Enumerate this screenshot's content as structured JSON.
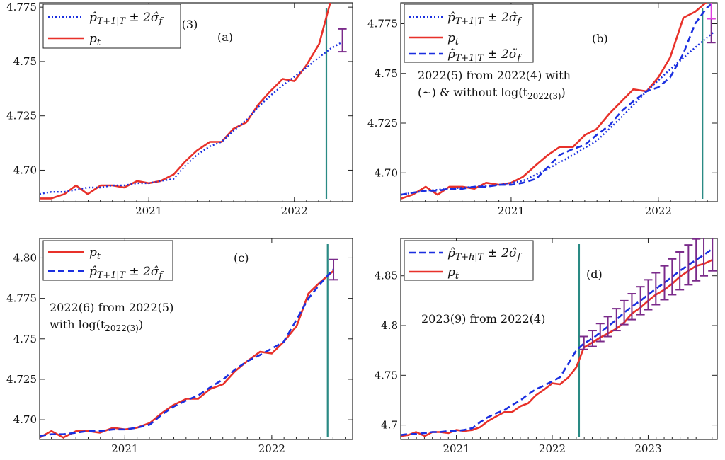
{
  "colors": {
    "actual": "#e8312a",
    "forecast": "#1a2fe0",
    "vline": "#2a8a84",
    "errorbar": "#7a2a8a",
    "errorbar2": "#e040e0",
    "frame": "#222222"
  },
  "chart_data": [
    {
      "id": "a",
      "type": "line",
      "panel_label": "(a)",
      "annotation_lines": [
        "2022(4) from 2022(3)"
      ],
      "xlim": [
        2020.25,
        2022.4
      ],
      "ylim": [
        4.6855,
        4.777
      ],
      "xticks": [
        2021,
        2022
      ],
      "xtick_labels": [
        "2021",
        "2022"
      ],
      "yticks": [
        4.7,
        4.725,
        4.75,
        4.775
      ],
      "ytick_labels": [
        "4.70",
        "4.725",
        "4.75",
        "4.775"
      ],
      "legend": [
        "p̂_{T+1|T} ± 2σ̂_f",
        "p_t"
      ],
      "legend_position": "top-left",
      "vline_x": 2022.22,
      "series": [
        {
          "name": "p_t",
          "style": "solid",
          "x": [
            2020.25,
            2020.33,
            2020.42,
            2020.5,
            2020.58,
            2020.67,
            2020.75,
            2020.83,
            2020.92,
            2021.0,
            2021.08,
            2021.17,
            2021.25,
            2021.33,
            2021.42,
            2021.5,
            2021.58,
            2021.67,
            2021.75,
            2021.83,
            2021.92,
            2022.0,
            2022.08,
            2022.17,
            2022.25,
            2022.33
          ],
          "values": [
            4.687,
            4.687,
            4.689,
            4.693,
            4.689,
            4.693,
            4.693,
            4.692,
            4.695,
            4.694,
            4.695,
            4.698,
            4.704,
            4.709,
            4.713,
            4.713,
            4.719,
            4.722,
            4.73,
            4.736,
            4.742,
            4.741,
            4.748,
            4.758,
            4.778,
            4.796
          ]
        },
        {
          "name": "p̂_{T+1|T}",
          "style": "dotted",
          "x": [
            2020.25,
            2020.33,
            2020.42,
            2020.5,
            2020.58,
            2020.67,
            2020.75,
            2020.83,
            2020.92,
            2021.0,
            2021.08,
            2021.17,
            2021.25,
            2021.33,
            2021.42,
            2021.5,
            2021.58,
            2021.67,
            2021.75,
            2021.83,
            2021.92,
            2022.0,
            2022.08,
            2022.17,
            2022.25,
            2022.33
          ],
          "values": [
            4.689,
            4.69,
            4.69,
            4.691,
            4.692,
            4.692,
            4.693,
            4.693,
            4.694,
            4.694,
            4.695,
            4.696,
            4.702,
            4.707,
            4.711,
            4.713,
            4.718,
            4.723,
            4.729,
            4.734,
            4.739,
            4.743,
            4.747,
            4.752,
            4.756,
            4.759
          ]
        }
      ],
      "error_bars": [
        {
          "x": 2022.33,
          "low": 4.7545,
          "high": 4.765
        }
      ]
    },
    {
      "id": "b",
      "type": "line",
      "panel_label": "(b)",
      "annotation_lines": [
        "2022(5) from 2022(4) with",
        "(~) & without log(t_{2022(3)})"
      ],
      "xlim": [
        2020.25,
        2022.4
      ],
      "ylim": [
        4.6855,
        4.7855
      ],
      "xticks": [
        2021,
        2022
      ],
      "xtick_labels": [
        "2021",
        "2022"
      ],
      "yticks": [
        4.7,
        4.725,
        4.75,
        4.775
      ],
      "ytick_labels": [
        "4.70",
        "4.725",
        "4.75",
        "4.775"
      ],
      "legend": [
        "p̂_{T+1|T} ± 2σ̂_f",
        "p_t",
        "p̃_{T+1|T} ± 2σ̃_f"
      ],
      "legend_position": "top-left",
      "vline_x": 2022.3,
      "series": [
        {
          "name": "p_t",
          "style": "solid",
          "x": [
            2020.25,
            2020.33,
            2020.42,
            2020.5,
            2020.58,
            2020.67,
            2020.75,
            2020.83,
            2020.92,
            2021.0,
            2021.08,
            2021.17,
            2021.25,
            2021.33,
            2021.42,
            2021.5,
            2021.58,
            2021.67,
            2021.75,
            2021.83,
            2021.92,
            2022.0,
            2022.08,
            2022.17,
            2022.25,
            2022.33
          ],
          "values": [
            4.687,
            4.689,
            4.693,
            4.689,
            4.693,
            4.693,
            4.692,
            4.695,
            4.694,
            4.695,
            4.698,
            4.704,
            4.709,
            4.713,
            4.713,
            4.719,
            4.722,
            4.73,
            4.736,
            4.742,
            4.741,
            4.748,
            4.758,
            4.778,
            4.781,
            4.786
          ]
        },
        {
          "name": "p̂_{T+1|T}",
          "style": "dotted",
          "x": [
            2020.25,
            2020.42,
            2020.58,
            2020.75,
            2020.92,
            2021.08,
            2021.25,
            2021.42,
            2021.58,
            2021.75,
            2021.92,
            2022.08,
            2022.25,
            2022.38
          ],
          "values": [
            4.689,
            4.691,
            4.692,
            4.693,
            4.694,
            4.696,
            4.702,
            4.709,
            4.716,
            4.728,
            4.741,
            4.752,
            4.763,
            4.771
          ]
        },
        {
          "name": "p̃_{T+1|T}",
          "style": "dashed",
          "x": [
            2020.25,
            2020.33,
            2020.42,
            2020.5,
            2020.58,
            2020.67,
            2020.75,
            2020.83,
            2020.92,
            2021.0,
            2021.08,
            2021.17,
            2021.25,
            2021.33,
            2021.42,
            2021.5,
            2021.58,
            2021.67,
            2021.75,
            2021.83,
            2021.92,
            2022.0,
            2022.08,
            2022.17,
            2022.25,
            2022.33,
            2022.38
          ],
          "values": [
            4.689,
            4.69,
            4.691,
            4.691,
            4.692,
            4.692,
            4.693,
            4.693,
            4.694,
            4.694,
            4.695,
            4.697,
            4.703,
            4.709,
            4.712,
            4.714,
            4.719,
            4.724,
            4.731,
            4.736,
            4.741,
            4.743,
            4.748,
            4.76,
            4.775,
            4.783,
            4.786
          ]
        }
      ],
      "error_bars": [
        {
          "x": 2022.36,
          "low": 4.7655,
          "high": 4.7775,
          "color": "errorbar"
        },
        {
          "x": 2022.36,
          "low": 4.7775,
          "high": 4.79,
          "color": "errorbar2"
        }
      ]
    },
    {
      "id": "c",
      "type": "line",
      "panel_label": "(c)",
      "annotation_lines": [
        "2022(6) from 2022(5)",
        "with log(t_{2022(3)})"
      ],
      "xlim": [
        2020.42,
        2022.55
      ],
      "ylim": [
        4.6878,
        4.812
      ],
      "xticks": [
        2021,
        2022
      ],
      "xtick_labels": [
        "2021",
        "2022"
      ],
      "yticks": [
        4.7,
        4.725,
        4.75,
        4.775,
        4.8
      ],
      "ytick_labels": [
        "4.70",
        "4.725",
        "4.75",
        "4.775",
        "4.80"
      ],
      "legend": [
        "p_t",
        "p̂_{T+1|T} ± 2σ̂_f"
      ],
      "legend_position": "top-left",
      "vline_x": 2022.38,
      "series": [
        {
          "name": "p_t",
          "style": "solid",
          "x": [
            2020.42,
            2020.5,
            2020.58,
            2020.67,
            2020.75,
            2020.83,
            2020.92,
            2021.0,
            2021.08,
            2021.17,
            2021.25,
            2021.33,
            2021.42,
            2021.5,
            2021.58,
            2021.67,
            2021.75,
            2021.83,
            2021.92,
            2022.0,
            2022.08,
            2022.17,
            2022.25,
            2022.33,
            2022.42
          ],
          "values": [
            4.689,
            4.693,
            4.689,
            4.693,
            4.693,
            4.692,
            4.695,
            4.694,
            4.695,
            4.698,
            4.704,
            4.709,
            4.713,
            4.713,
            4.719,
            4.722,
            4.73,
            4.736,
            4.742,
            4.741,
            4.748,
            4.758,
            4.778,
            4.785,
            4.792
          ]
        },
        {
          "name": "p̂_{T+1|T}",
          "style": "dashed",
          "x": [
            2020.42,
            2020.5,
            2020.58,
            2020.67,
            2020.75,
            2020.83,
            2020.92,
            2021.0,
            2021.08,
            2021.17,
            2021.25,
            2021.33,
            2021.42,
            2021.5,
            2021.58,
            2021.67,
            2021.75,
            2021.83,
            2021.92,
            2022.0,
            2022.08,
            2022.17,
            2022.25,
            2022.33,
            2022.42
          ],
          "values": [
            4.69,
            4.691,
            4.691,
            4.692,
            4.693,
            4.693,
            4.694,
            4.694,
            4.695,
            4.697,
            4.703,
            4.708,
            4.712,
            4.715,
            4.72,
            4.725,
            4.731,
            4.736,
            4.74,
            4.744,
            4.748,
            4.762,
            4.775,
            4.784,
            4.793
          ]
        }
      ],
      "error_bars": [
        {
          "x": 2022.42,
          "low": 4.7865,
          "high": 4.799
        }
      ]
    },
    {
      "id": "d",
      "type": "line",
      "panel_label": "(d)",
      "annotation_lines": [
        "2023(9) from 2022(4)"
      ],
      "xlim": [
        2020.42,
        2023.72
      ],
      "ylim": [
        4.6855,
        4.8875
      ],
      "xticks": [
        2021,
        2022,
        2023
      ],
      "xtick_labels": [
        "2021",
        "2022",
        "2023"
      ],
      "yticks": [
        4.7,
        4.75,
        4.8,
        4.85
      ],
      "ytick_labels": [
        "4.7",
        "4.75",
        "4.8",
        "4.85"
      ],
      "legend": [
        "p̂_{T+h|T} ± 2σ̂_f",
        "p_t"
      ],
      "legend_position": "top-left",
      "vline_x": 2022.28,
      "series": [
        {
          "name": "p_t",
          "style": "solid",
          "x": [
            2020.42,
            2020.5,
            2020.58,
            2020.67,
            2020.75,
            2020.83,
            2020.92,
            2021.0,
            2021.08,
            2021.17,
            2021.25,
            2021.33,
            2021.42,
            2021.5,
            2021.58,
            2021.67,
            2021.75,
            2021.83,
            2021.92,
            2022.0,
            2022.08,
            2022.17,
            2022.25,
            2022.33,
            2022.42,
            2022.5,
            2022.58,
            2022.67,
            2022.75,
            2022.83,
            2022.92,
            2023.0,
            2023.08,
            2023.17,
            2023.25,
            2023.33,
            2023.42,
            2023.5,
            2023.58,
            2023.67
          ],
          "values": [
            4.689,
            4.69,
            4.693,
            4.689,
            4.693,
            4.693,
            4.692,
            4.695,
            4.694,
            4.695,
            4.698,
            4.704,
            4.709,
            4.713,
            4.713,
            4.719,
            4.722,
            4.73,
            4.736,
            4.742,
            4.741,
            4.748,
            4.758,
            4.778,
            4.783,
            4.788,
            4.792,
            4.797,
            4.803,
            4.812,
            4.818,
            4.825,
            4.831,
            4.836,
            4.842,
            4.849,
            4.855,
            4.86,
            4.862,
            4.866
          ]
        },
        {
          "name": "p̂_{T+h|T}",
          "style": "dashed",
          "x": [
            2020.42,
            2020.5,
            2020.58,
            2020.67,
            2020.75,
            2020.83,
            2020.92,
            2021.0,
            2021.08,
            2021.17,
            2021.25,
            2021.33,
            2021.42,
            2021.5,
            2021.58,
            2021.67,
            2021.75,
            2021.83,
            2021.92,
            2022.0,
            2022.08,
            2022.17,
            2022.25,
            2022.33,
            2022.42,
            2022.5,
            2022.58,
            2022.67,
            2022.75,
            2022.83,
            2022.92,
            2023.0,
            2023.08,
            2023.17,
            2023.25,
            2023.33,
            2023.42,
            2023.5,
            2023.58,
            2023.67
          ],
          "values": [
            4.69,
            4.691,
            4.691,
            4.692,
            4.693,
            4.693,
            4.694,
            4.694,
            4.695,
            4.697,
            4.703,
            4.708,
            4.712,
            4.715,
            4.72,
            4.725,
            4.731,
            4.736,
            4.74,
            4.744,
            4.748,
            4.762,
            4.775,
            4.782,
            4.787,
            4.793,
            4.799,
            4.806,
            4.813,
            4.819,
            4.825,
            4.831,
            4.837,
            4.843,
            4.849,
            4.855,
            4.861,
            4.866,
            4.871,
            4.877
          ]
        }
      ],
      "error_bars": [
        {
          "x": 2022.33,
          "low": 4.776,
          "high": 4.789
        },
        {
          "x": 2022.42,
          "low": 4.779,
          "high": 4.795
        },
        {
          "x": 2022.5,
          "low": 4.784,
          "high": 4.802
        },
        {
          "x": 2022.58,
          "low": 4.789,
          "high": 4.809
        },
        {
          "x": 2022.67,
          "low": 4.795,
          "high": 4.817
        },
        {
          "x": 2022.75,
          "low": 4.801,
          "high": 4.825
        },
        {
          "x": 2022.83,
          "low": 4.806,
          "high": 4.832
        },
        {
          "x": 2022.92,
          "low": 4.811,
          "high": 4.839
        },
        {
          "x": 2023.0,
          "low": 4.816,
          "high": 4.846
        },
        {
          "x": 2023.08,
          "low": 4.821,
          "high": 4.853
        },
        {
          "x": 2023.17,
          "low": 4.826,
          "high": 4.86
        },
        {
          "x": 2023.25,
          "low": 4.831,
          "high": 4.867
        },
        {
          "x": 2023.33,
          "low": 4.836,
          "high": 4.874
        },
        {
          "x": 2023.42,
          "low": 4.841,
          "high": 4.881
        },
        {
          "x": 2023.5,
          "low": 4.845,
          "high": 4.887
        },
        {
          "x": 2023.58,
          "low": 4.85,
          "high": 4.892
        },
        {
          "x": 2023.67,
          "low": 4.855,
          "high": 4.898
        }
      ]
    }
  ]
}
